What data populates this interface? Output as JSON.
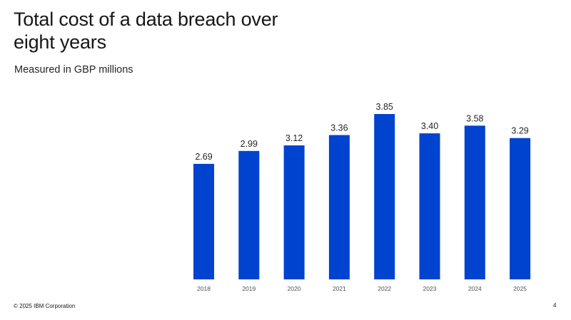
{
  "title": "Total cost of a data breach over eight years",
  "subtitle": "Measured in GBP millions",
  "footer": "© 2025 IBM Corporation",
  "page_number": "4",
  "colors": {
    "bar": "#0043CE",
    "label": "#262626",
    "tick": "#525252"
  },
  "chart_data": {
    "type": "bar",
    "categories": [
      "2018",
      "2019",
      "2020",
      "2021",
      "2022",
      "2023",
      "2024",
      "2025"
    ],
    "values": [
      2.69,
      2.99,
      3.12,
      3.36,
      3.85,
      3.4,
      3.58,
      3.29
    ],
    "value_labels": [
      "2.69",
      "2.99",
      "3.12",
      "3.36",
      "3.85",
      "3.40",
      "3.58",
      "3.29"
    ],
    "title": "Total cost of a data breach over eight years",
    "xlabel": "",
    "ylabel": "",
    "ylim": [
      0,
      3.85
    ],
    "grid": false,
    "legend": "none"
  }
}
